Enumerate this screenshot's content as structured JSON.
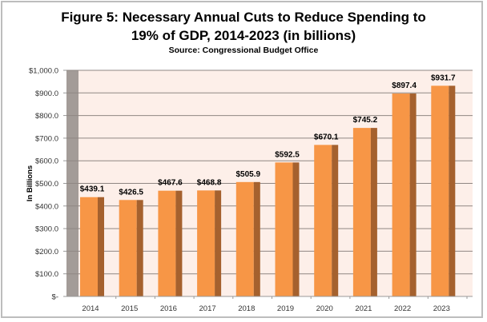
{
  "chart_data": {
    "type": "bar",
    "title": "Figure 5: Necessary Annual Cuts to Reduce Spending to 19% of GDP, 2014-2023 (in billions)",
    "title_line1": "Figure 5: Necessary Annual Cuts to Reduce Spending to",
    "title_line2": "19% of GDP, 2014-2023 (in billions)",
    "subtitle": "Source: Congressional Budget Office",
    "xlabel": "",
    "ylabel": "In Billions",
    "categories": [
      "2014",
      "2015",
      "2016",
      "2017",
      "2018",
      "2019",
      "2020",
      "2021",
      "2022",
      "2023"
    ],
    "values": [
      439.1,
      426.5,
      467.6,
      468.8,
      505.9,
      592.5,
      670.1,
      745.2,
      897.4,
      931.7
    ],
    "data_labels": [
      "$439.1",
      "$426.5",
      "$467.6",
      "$468.8",
      "$505.9",
      "$592.5",
      "$670.1",
      "$745.2",
      "$897.4",
      "$931.7"
    ],
    "ylim": [
      0,
      1000
    ],
    "yticks": [
      0,
      100,
      200,
      300,
      400,
      500,
      600,
      700,
      800,
      900,
      1000
    ],
    "ytick_labels": [
      "$-",
      "$100.0",
      "$200.0",
      "$300.0",
      "$400.0",
      "$500.0",
      "$600.0",
      "$700.0",
      "$800.0",
      "$900.0",
      "$1,000.0"
    ],
    "grid": true,
    "legend": "none",
    "colors": {
      "bar_front": "#f79646",
      "bar_side": "#a5612e",
      "plot_bg": "#fdefe9",
      "wall": "#a39c98",
      "gridline": "#8f8783"
    }
  }
}
